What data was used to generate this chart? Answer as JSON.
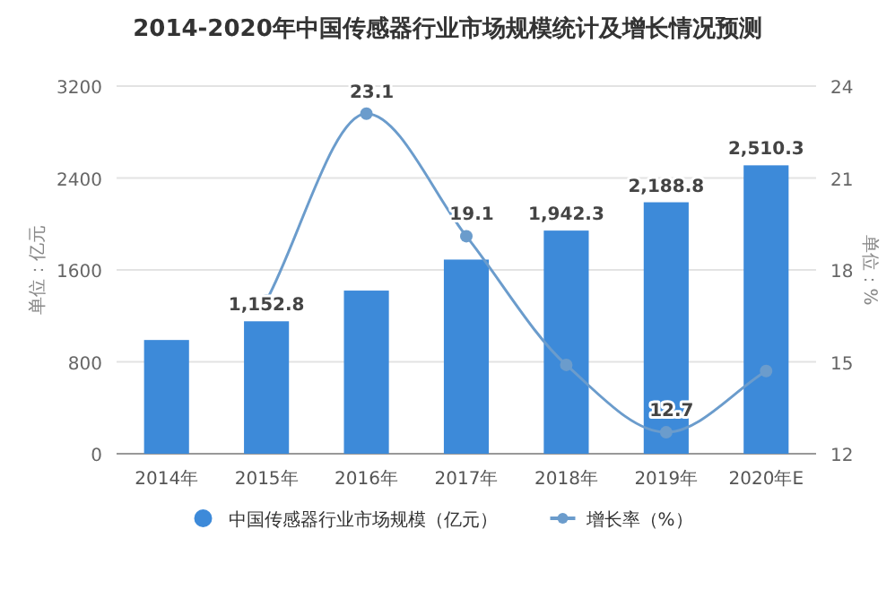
{
  "chart_data": {
    "type": "bar",
    "title": "2014-2020年中国传感器行业市场规模统计及增长情况预测",
    "categories": [
      "2014年",
      "2015年",
      "2016年",
      "2017年",
      "2018年",
      "2019年",
      "2020年E"
    ],
    "ylabel": "单位：亿元",
    "y2label": "单位：%",
    "ylim": [
      0,
      3200
    ],
    "yticks": [
      0,
      800,
      1600,
      2400,
      3200
    ],
    "y2lim": [
      12,
      24
    ],
    "y2ticks": [
      12,
      15,
      18,
      21,
      24
    ],
    "grid": "y",
    "legend": "bottom",
    "series": [
      {
        "name": "中国传感器行业市场规模（亿元）",
        "color": "#3d8ad9",
        "values": [
          990,
          1152.8,
          1420,
          1690,
          1942.3,
          2188.8,
          2510.3
        ],
        "value_labels": [
          null,
          "1,152.8",
          null,
          null,
          "1,942.3",
          "2,188.8",
          "2,510.3"
        ]
      },
      {
        "name": "增长率（%）",
        "type": "line",
        "axis": "y2",
        "color": "#6b9ccc",
        "marker": "circle",
        "values": [
          null,
          17,
          23.1,
          19.1,
          14.9,
          12.7,
          14.7
        ],
        "value_labels": [
          null,
          null,
          "23.1",
          "19.1",
          null,
          "12.7",
          null
        ]
      }
    ]
  }
}
